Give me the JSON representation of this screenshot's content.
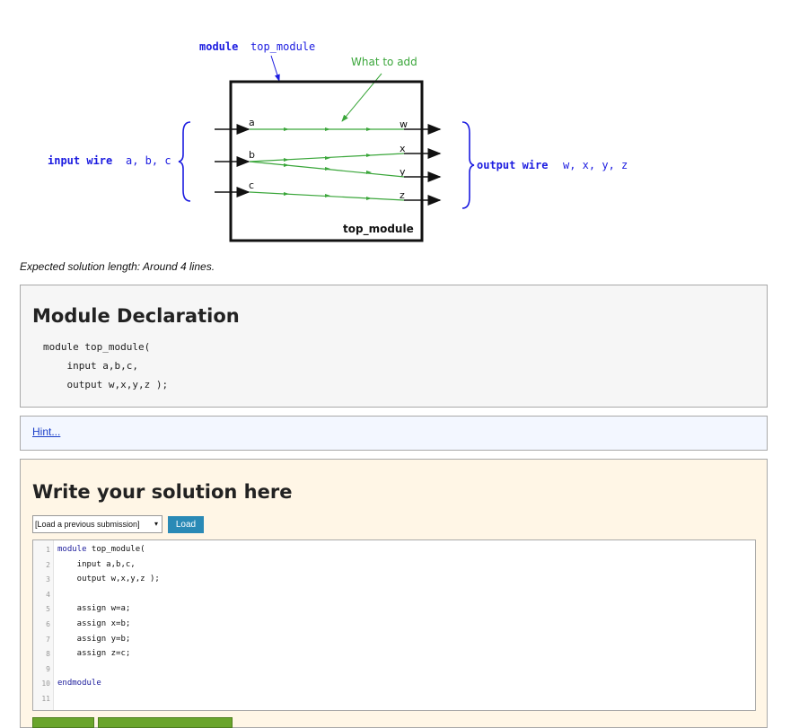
{
  "diagram": {
    "module_keyword": "module",
    "module_name": "top_module",
    "what_to_add": "What to add",
    "input_label_kw": "input wire",
    "input_label_vars": "a, b, c",
    "output_label_kw": "output wire",
    "output_label_vars": "w, x, y, z",
    "box_label": "top_module",
    "inputs": [
      "a",
      "b",
      "c"
    ],
    "outputs": [
      "w",
      "x",
      "y",
      "z"
    ],
    "colors": {
      "blue": "#1c1ce0",
      "green": "#3aa63a",
      "black": "#111111"
    }
  },
  "expected": "Expected solution length: Around 4 lines.",
  "declaration": {
    "title": "Module Declaration",
    "code": "module top_module(\n    input a,b,c,\n    output w,x,y,z );"
  },
  "hint": {
    "link": "Hint..."
  },
  "solution": {
    "title": "Write your solution here",
    "select_value": "[Load a previous submission]",
    "load_label": "Load",
    "lines": [
      {
        "n": "1",
        "kw": "module",
        "rest": " top_module("
      },
      {
        "n": "2",
        "kw": "",
        "rest": "    input a,b,c,"
      },
      {
        "n": "3",
        "kw": "",
        "rest": "    output w,x,y,z );"
      },
      {
        "n": "4",
        "kw": "",
        "rest": ""
      },
      {
        "n": "5",
        "kw": "",
        "rest": "    assign w=a;"
      },
      {
        "n": "6",
        "kw": "",
        "rest": "    assign x=b;"
      },
      {
        "n": "7",
        "kw": "",
        "rest": "    assign y=b;"
      },
      {
        "n": "8",
        "kw": "",
        "rest": "    assign z=c;"
      },
      {
        "n": "9",
        "kw": "",
        "rest": ""
      },
      {
        "n": "10",
        "kw": "endmodule",
        "rest": ""
      },
      {
        "n": "11",
        "kw": "",
        "rest": ""
      }
    ]
  }
}
